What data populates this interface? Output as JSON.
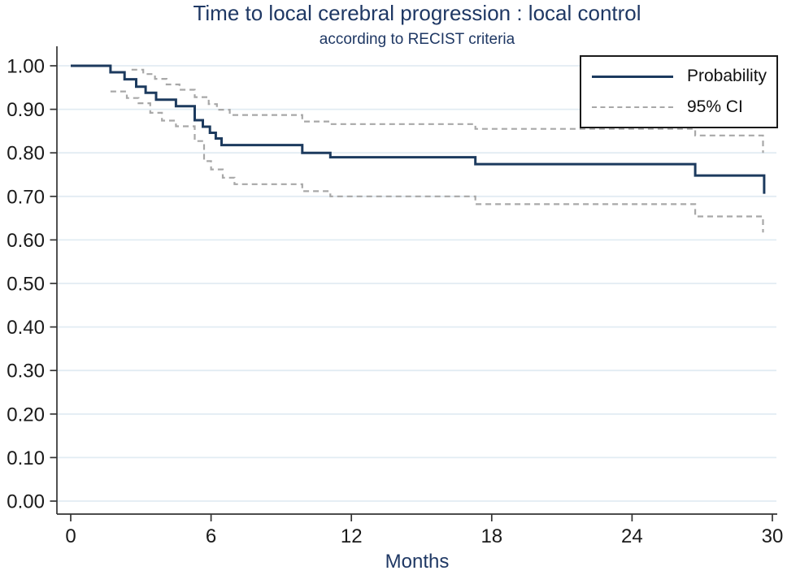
{
  "chart_data": {
    "type": "line",
    "subtype": "kaplan-meier-step",
    "title": "Time to local cerebral progression : local control",
    "subtitle": "according to RECIST criteria",
    "xlabel": "Months",
    "ylabel": "",
    "x_range": [
      0,
      30
    ],
    "y_range": [
      0.0,
      1.0
    ],
    "xticks": [
      "0",
      "6",
      "12",
      "18",
      "24",
      "30"
    ],
    "yticks": [
      "1.00",
      "0.90",
      "0.80",
      "0.70",
      "0.60",
      "0.50",
      "0.40",
      "0.30",
      "0.20",
      "0.10",
      "0.00"
    ],
    "grid": "horizontal",
    "colors": {
      "probability_line": "#1c3a5e",
      "ci_line": "#a8a8a8",
      "gridline": "#e2ecf3",
      "axis": "#333333",
      "tick_label": "#1a1a1a",
      "title_text": "#1f3864"
    },
    "legend": {
      "position": "top-right",
      "entries": [
        {
          "label": "Probability",
          "line": "solid"
        },
        {
          "label": "95% CI",
          "line": "dashed"
        }
      ]
    },
    "series": [
      {
        "name": "Probability",
        "style": "solid",
        "points": [
          [
            0,
            1.0
          ],
          [
            1.7,
            0.985
          ],
          [
            2.3,
            0.969
          ],
          [
            2.8,
            0.952
          ],
          [
            3.2,
            0.938
          ],
          [
            3.65,
            0.922
          ],
          [
            4.5,
            0.907
          ],
          [
            5.3,
            0.875
          ],
          [
            5.65,
            0.86
          ],
          [
            5.95,
            0.846
          ],
          [
            6.2,
            0.833
          ],
          [
            6.45,
            0.818
          ],
          [
            9.9,
            0.8
          ],
          [
            11.1,
            0.79
          ],
          [
            17.3,
            0.774
          ],
          [
            26.7,
            0.748
          ],
          [
            29.65,
            0.706
          ]
        ]
      },
      {
        "name": "95% CI upper",
        "style": "dashed",
        "points": [
          [
            2.6,
            0.991
          ],
          [
            3.1,
            0.981
          ],
          [
            3.6,
            0.97
          ],
          [
            4.1,
            0.957
          ],
          [
            4.65,
            0.945
          ],
          [
            5.3,
            0.928
          ],
          [
            5.9,
            0.912
          ],
          [
            6.25,
            0.899
          ],
          [
            6.8,
            0.887
          ],
          [
            9.9,
            0.872
          ],
          [
            11.1,
            0.866
          ],
          [
            17.3,
            0.855
          ],
          [
            26.7,
            0.84
          ],
          [
            29.6,
            0.8
          ]
        ]
      },
      {
        "name": "95% CI lower",
        "style": "dashed",
        "points": [
          [
            1.7,
            0.941
          ],
          [
            2.4,
            0.926
          ],
          [
            2.9,
            0.914
          ],
          [
            3.4,
            0.892
          ],
          [
            3.9,
            0.874
          ],
          [
            4.5,
            0.861
          ],
          [
            5.3,
            0.827
          ],
          [
            5.7,
            0.781
          ],
          [
            6.0,
            0.762
          ],
          [
            6.5,
            0.743
          ],
          [
            7.0,
            0.728
          ],
          [
            9.9,
            0.712
          ],
          [
            11.1,
            0.7
          ],
          [
            17.3,
            0.682
          ],
          [
            26.7,
            0.654
          ],
          [
            29.6,
            0.617
          ]
        ]
      }
    ]
  }
}
